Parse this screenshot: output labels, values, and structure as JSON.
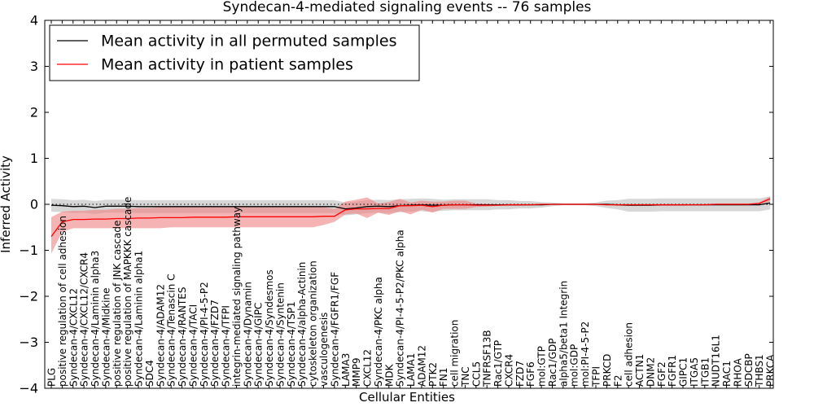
{
  "chart_data": {
    "type": "line",
    "title": "Syndecan-4-mediated signaling events -- 76 samples",
    "xlabel": "Cellular Entities",
    "ylabel": "Inferred Activity",
    "ylim": [
      -4,
      4
    ],
    "yticks": [
      -4,
      -3,
      -2,
      -1,
      0,
      1,
      2,
      3,
      4
    ],
    "grid": false,
    "legend_position": "top-left",
    "categories": [
      "PLG",
      "positive regulation of cell adhesion",
      "Syndecan-4/CXCL12",
      "Syndecan-4/CXCL12/CXCR4",
      "Syndecan-4/Laminin alpha3",
      "Syndecan-4/Midkine",
      "positive regulation of JNK cascade",
      "positive regulation of MAPKKK cascade",
      "Syndecan-4/Laminin alpha1",
      "SDC4",
      "Syndecan-4/ADAM12",
      "Syndecan-4/Tenascin C",
      "Syndecan-4/RANTES",
      "Syndecan-4/TACI",
      "Syndecan-4/PI-4-5-P2",
      "Syndecan-4/FZD7",
      "Syndecan-4/TFPI",
      "integrin-mediated signaling pathway",
      "Syndecan-4/Dynamin",
      "Syndecan-4/GIPC",
      "Syndecan-4/Syndesmos",
      "Syndecan-4/Syntenin",
      "Syndecan-4/TSP1",
      "Syndecan-4/alpha-Actinin",
      "cytoskeleton organization",
      "vasculogenesis",
      "Syndecan-4/FGFR1/FGF",
      "LAMA3",
      "MMP9",
      "CXCL12",
      "Syndecan-4/PKC alpha",
      "MDK",
      "Syndecan-4/PI-4-5-P2/PKC alpha",
      "LAMA1",
      "ADAM12",
      "PTK2",
      "FN1",
      "cell migration",
      "TNC",
      "CCL5",
      "TNFRSF13B",
      "Rac1/GTP",
      "CXCR4",
      "FZD7",
      "FGF6",
      "mol:GTP",
      "Rac1/GDP",
      "alpha5/beta1 Integrin",
      "mol:GDP",
      "mol:PI-4-5-P2",
      "TFPI",
      "PRKCD",
      "F2",
      "cell adhesion",
      "ACTN1",
      "DNM2",
      "FGF2",
      "FGFR1",
      "GIPC1",
      "ITGA5",
      "ITGB1",
      "NUDT16L1",
      "RAC1",
      "RHOA",
      "SDCBP",
      "THBS1",
      "PRKCA"
    ],
    "series": [
      {
        "name": "Mean activity in all permuted samples",
        "color": "#000000",
        "values": [
          -0.02,
          -0.03,
          -0.05,
          -0.04,
          -0.07,
          -0.04,
          -0.04,
          -0.04,
          -0.05,
          -0.05,
          -0.05,
          -0.05,
          -0.05,
          -0.05,
          -0.05,
          -0.05,
          -0.05,
          -0.05,
          -0.05,
          -0.05,
          -0.05,
          -0.05,
          -0.05,
          -0.05,
          -0.05,
          -0.05,
          -0.05,
          -0.1,
          -0.08,
          -0.05,
          -0.04,
          -0.05,
          -0.03,
          -0.02,
          -0.01,
          -0.02,
          -0.02,
          -0.01,
          -0.01,
          -0.01,
          -0.01,
          -0.01,
          -0.01,
          -0.01,
          -0.01,
          -0.01,
          0.0,
          0.0,
          0.0,
          0.0,
          0.0,
          0.0,
          -0.01,
          -0.02,
          -0.02,
          -0.02,
          -0.01,
          -0.01,
          -0.01,
          -0.01,
          -0.01,
          -0.01,
          -0.01,
          -0.01,
          -0.01,
          -0.01,
          0.03
        ],
        "band": [
          0.14,
          0.14,
          0.14,
          0.14,
          0.14,
          0.14,
          0.14,
          0.14,
          0.14,
          0.14,
          0.14,
          0.14,
          0.14,
          0.14,
          0.14,
          0.14,
          0.14,
          0.14,
          0.14,
          0.14,
          0.14,
          0.14,
          0.14,
          0.14,
          0.14,
          0.14,
          0.14,
          0.14,
          0.14,
          0.14,
          0.14,
          0.14,
          0.14,
          0.14,
          0.14,
          0.14,
          0.12,
          0.12,
          0.12,
          0.12,
          0.12,
          0.1,
          0.1,
          0.08,
          0.08,
          0.06,
          0.04,
          0.02,
          0.02,
          0.02,
          0.04,
          0.08,
          0.1,
          0.14,
          0.14,
          0.14,
          0.14,
          0.14,
          0.14,
          0.14,
          0.14,
          0.14,
          0.14,
          0.14,
          0.14,
          0.14,
          0.14
        ]
      },
      {
        "name": "Mean activity in patient samples",
        "color": "#ff0000",
        "values": [
          -0.7,
          -0.38,
          -0.33,
          -0.33,
          -0.32,
          -0.32,
          -0.31,
          -0.31,
          -0.3,
          -0.3,
          -0.29,
          -0.29,
          -0.29,
          -0.28,
          -0.28,
          -0.28,
          -0.28,
          -0.27,
          -0.27,
          -0.27,
          -0.27,
          -0.27,
          -0.27,
          -0.27,
          -0.27,
          -0.26,
          -0.26,
          -0.12,
          -0.1,
          -0.1,
          -0.09,
          -0.09,
          -0.03,
          -0.03,
          -0.02,
          -0.05,
          -0.02,
          -0.01,
          -0.01,
          -0.02,
          -0.02,
          -0.02,
          -0.01,
          -0.01,
          -0.01,
          0.0,
          0.0,
          0.0,
          0.0,
          0.0,
          0.0,
          -0.01,
          -0.01,
          -0.01,
          -0.01,
          -0.01,
          -0.01,
          -0.01,
          -0.01,
          -0.01,
          -0.01,
          0.0,
          0.0,
          0.0,
          0.0,
          0.02,
          0.12
        ],
        "band_lower": [
          -1.07,
          -0.6,
          -0.52,
          -0.52,
          -0.52,
          -0.52,
          -0.52,
          -0.52,
          -0.52,
          -0.52,
          -0.52,
          -0.5,
          -0.5,
          -0.5,
          -0.5,
          -0.5,
          -0.5,
          -0.5,
          -0.5,
          -0.5,
          -0.5,
          -0.5,
          -0.5,
          -0.5,
          -0.5,
          -0.45,
          -0.38,
          -0.22,
          -0.2,
          -0.3,
          -0.18,
          -0.23,
          -0.15,
          -0.22,
          -0.12,
          -0.18,
          -0.1,
          -0.1,
          -0.1,
          -0.06,
          -0.05,
          -0.03,
          -0.03,
          -0.03,
          -0.02,
          -0.01,
          -0.01,
          -0.01,
          -0.01,
          -0.01,
          -0.01,
          -0.02,
          -0.03,
          -0.03,
          -0.03,
          -0.03,
          -0.03,
          -0.03,
          -0.03,
          -0.02,
          -0.02,
          -0.02,
          -0.02,
          -0.02,
          -0.01,
          0.0,
          0.06
        ],
        "band_upper": [
          -0.28,
          -0.16,
          -0.14,
          -0.14,
          -0.12,
          -0.12,
          -0.1,
          -0.1,
          -0.08,
          -0.08,
          -0.06,
          -0.06,
          -0.06,
          -0.06,
          -0.06,
          -0.06,
          -0.06,
          -0.04,
          -0.04,
          -0.04,
          -0.04,
          -0.04,
          -0.04,
          -0.04,
          -0.04,
          -0.06,
          -0.1,
          0.06,
          0.1,
          0.15,
          0.02,
          0.05,
          0.12,
          0.04,
          0.08,
          0.06,
          0.06,
          0.08,
          0.08,
          0.02,
          0.01,
          0.0,
          0.01,
          0.01,
          0.01,
          0.01,
          0.01,
          0.01,
          0.01,
          0.01,
          0.01,
          0.0,
          0.01,
          0.01,
          0.01,
          0.01,
          0.01,
          0.01,
          0.01,
          0.01,
          0.01,
          0.02,
          0.02,
          0.02,
          0.02,
          0.04,
          0.17
        ]
      }
    ]
  }
}
